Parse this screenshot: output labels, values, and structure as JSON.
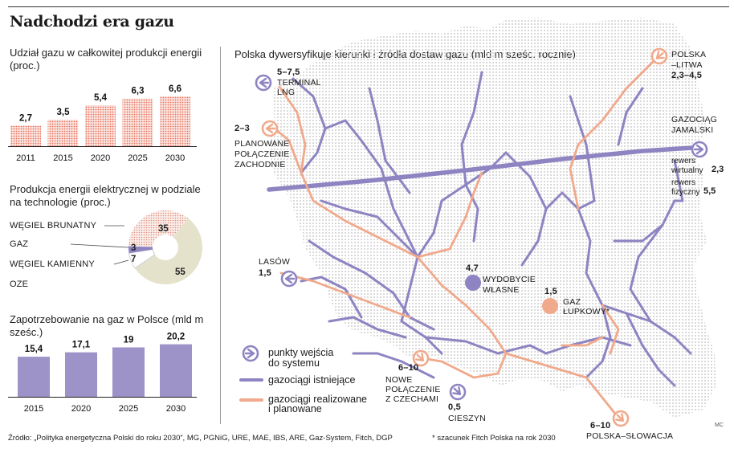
{
  "title": "Nadchodzi era gazu",
  "colors": {
    "purple": "#8e84c2",
    "salmon": "#f0a98b",
    "bar_dots": "#e86d5a",
    "pie_brown_dots": "#dd8d7d",
    "pie_oze": "#e5e2cc",
    "map_dots": "#cfcfcf"
  },
  "chart_share": {
    "title": "Udział gazu w całkowitej produkcji energii (proc.)",
    "chart_data": {
      "type": "bar",
      "categories": [
        "2011",
        "2015",
        "2020",
        "2025",
        "2030"
      ],
      "values": [
        2.7,
        3.5,
        5.4,
        6.3,
        6.6
      ],
      "value_labels": [
        "2,7",
        "3,5",
        "5,4",
        "6,3",
        "6,6"
      ],
      "ylim": [
        0,
        7
      ]
    }
  },
  "chart_mix": {
    "title": "Produkcja energii elektrycznej w podziale na technologie (proc.)",
    "chart_data": {
      "type": "pie",
      "labels": [
        "WĘGIEL BRUNATNY",
        "GAZ",
        "WĘGIEL KAMIENNY",
        "OZE"
      ],
      "values": [
        35,
        3,
        7,
        55
      ],
      "value_labels": [
        "35",
        "3",
        "7",
        "55"
      ]
    }
  },
  "chart_demand": {
    "title": "Zapotrzebowanie na gaz w Polsce (mld m sześc.)",
    "chart_data": {
      "type": "bar",
      "categories": [
        "2015",
        "2020",
        "2025",
        "2030"
      ],
      "values": [
        15.4,
        17.1,
        19,
        20.2
      ],
      "value_labels": [
        "15,4",
        "17,1",
        "19",
        "20,2"
      ],
      "ylim": [
        0,
        21
      ]
    }
  },
  "map": {
    "title": "Polska dywersyfikuje kierunki i źródła dostaw gazu (mld m sześc. rocznie)",
    "annotations": {
      "lng_value": "5–7,5",
      "lng_line1": "TERMINAL",
      "lng_line2": "LNG",
      "west_value": "2–3",
      "west_line1": "PLANOWANE",
      "west_line2": "POŁĄCZENIE",
      "west_line3": "ZACHODNIE",
      "lasow_name": "LASÓW",
      "lasow_value": "1,5",
      "own_value": "4,7",
      "own_line1": "WYDOBYCIE",
      "own_line2": "WŁASNE",
      "shale_value": "1,5",
      "shale_line1": "GAZ",
      "shale_line2": "ŁUPKOWY*",
      "lit_line1": "POLSKA",
      "lit_line2": "–LITWA",
      "lit_value": "2,3–4,5",
      "jam_line1": "GAZOCIĄG",
      "jam_line2": "JAMALSKI",
      "rev_virt_label": "rewers",
      "rev_virt_label2": "wirtualny",
      "rev_virt_value": "2,3",
      "rev_phys_label": "rewers",
      "rev_phys_label2": "fizyczny",
      "rev_phys_value": "5,5",
      "czech_value": "6–10",
      "czech_line1": "NOWE",
      "czech_line2": "POŁĄCZENIE",
      "czech_line3": "Z CZECHAMI",
      "cieszyn_value": "0,5",
      "cieszyn_name": "CIESZYN",
      "svk_value": "6–10",
      "svk_name": "POLSKA–SŁOWACJA"
    },
    "legend": {
      "entry_points_line1": "punkty wejścia",
      "entry_points_line2": "do systemu",
      "existing": "gazociągi istniejące",
      "planned_line1": "gazociągi realizowane",
      "planned_line2": "i planowane"
    },
    "icons": {
      "entry": "arrow-circle-icon",
      "existing": "purple-line-icon",
      "planned": "salmon-line-icon"
    }
  },
  "footer": {
    "source": "Źródło: „Polityka energetyczna Polski do roku 2030”, MG, PGNiG, URE, MAE, IBS, ARE, Gaz-System, Fitch, DGP",
    "footnote": "* szacunek Fitch Polska na rok 2030",
    "author": "MC"
  }
}
